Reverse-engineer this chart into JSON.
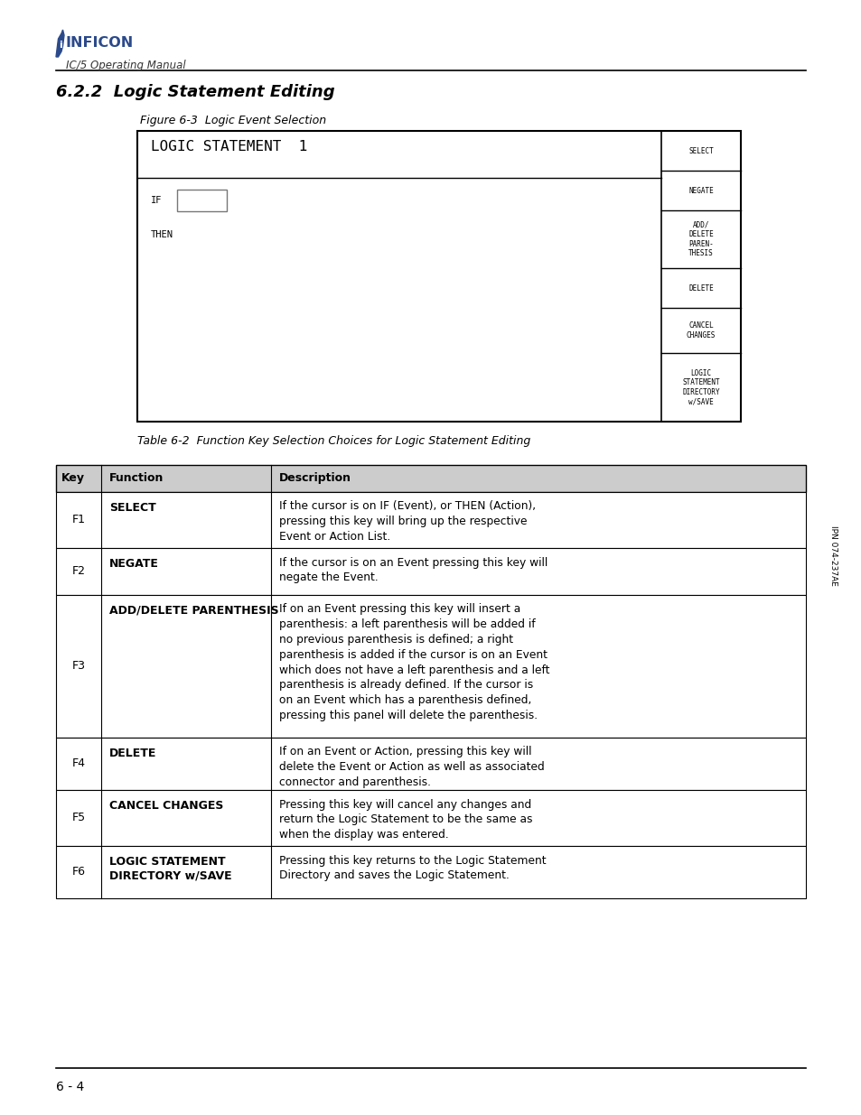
{
  "bg_color": "#ffffff",
  "page_width": 9.54,
  "page_height": 12.35,
  "header_subtitle": "IC/5 Operating Manual",
  "section_title": "6.2.2  Logic Statement Editing",
  "figure_caption": "Figure 6-3  Logic Event Selection",
  "table_caption": "Table 6-2  Function Key Selection Choices for Logic Statement Editing",
  "screen_title": "LOGIC STATEMENT  1",
  "table_headers": [
    "Key",
    "Function",
    "Description"
  ],
  "table_rows": [
    [
      "F1",
      "SELECT",
      "If the cursor is on IF (Event), or THEN (Action),\npressing this key will bring up the respective\nEvent or Action List."
    ],
    [
      "F2",
      "NEGATE",
      "If the cursor is on an Event pressing this key will\nnegate the Event."
    ],
    [
      "F3",
      "ADD/DELETE PARENTHESIS",
      "If on an Event pressing this key will insert a\nparenthesis: a left parenthesis will be added if\nno previous parenthesis is defined; a right\nparenthesis is added if the cursor is on an Event\nwhich does not have a left parenthesis and a left\nparenthesis is already defined. If the cursor is\non an Event which has a parenthesis defined,\npressing this panel will delete the parenthesis."
    ],
    [
      "F4",
      "DELETE",
      "If on an Event or Action, pressing this key will\ndelete the Event or Action as well as associated\nconnector and parenthesis."
    ],
    [
      "F5",
      "CANCEL CHANGES",
      "Pressing this key will cancel any changes and\nreturn the Logic Statement to be the same as\nwhen the display was entered."
    ],
    [
      "F6",
      "LOGIC STATEMENT\nDIRECTORY w/SAVE",
      "Pressing this key returns to the Logic Statement\nDirectory and saves the Logic Statement."
    ]
  ],
  "footer_text": "6 - 4",
  "side_text": "IPN 074-237AE"
}
